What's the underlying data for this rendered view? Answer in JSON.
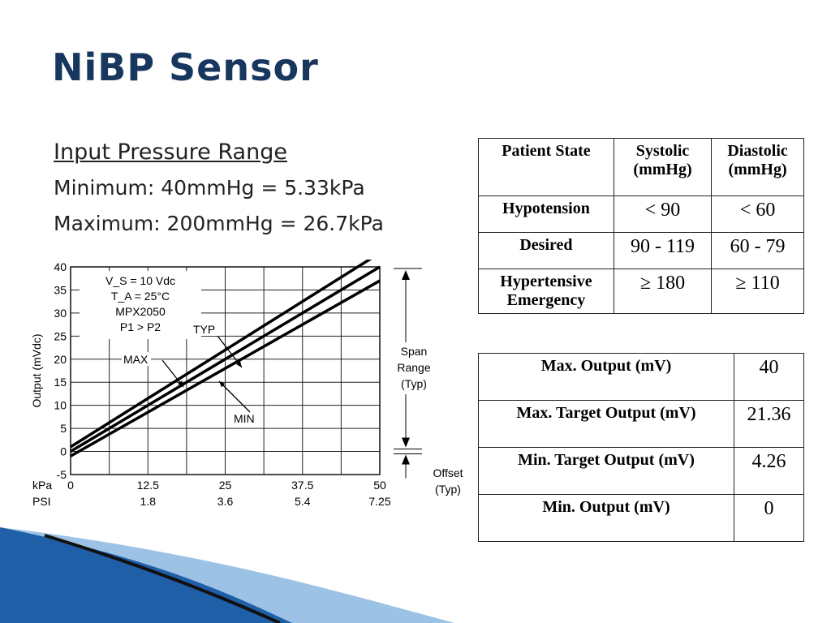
{
  "title": "NiBP Sensor",
  "bullets": {
    "heading": "Input Pressure Range",
    "minimum": "Minimum: 40mmHg = 5.33kPa",
    "maximum": "Maximum: 200mmHg = 26.7kPa"
  },
  "patient_table": {
    "headers": [
      [
        "Patient State"
      ],
      [
        "Systolic",
        "(mmHg)"
      ],
      [
        "Diastolic",
        "(mmHg)"
      ]
    ],
    "rows": [
      {
        "state": [
          "Hypotension"
        ],
        "systolic": "< 90",
        "diastolic": "< 60"
      },
      {
        "state": [
          "Desired"
        ],
        "systolic": "90 - 119",
        "diastolic": "60 - 79"
      },
      {
        "state": [
          "Hypertensive",
          "Emergency"
        ],
        "systolic": "≥ 180",
        "diastolic": "≥ 110"
      }
    ]
  },
  "output_table": {
    "rows": [
      {
        "label": "Max. Output (mV)",
        "value": "40"
      },
      {
        "label": "Max. Target Output (mV)",
        "value": "21.36"
      },
      {
        "label": "Min. Target Output (mV)",
        "value": "4.26"
      },
      {
        "label": "Min. Output (mV)",
        "value": "0"
      }
    ]
  },
  "chart_data": {
    "type": "line",
    "ylabel": "Output (mVdc)",
    "y_ticks": [
      "40",
      "35",
      "30",
      "25",
      "20",
      "15",
      "10",
      "5",
      "0",
      "-5"
    ],
    "ylim": [
      -5,
      40
    ],
    "x_unit_labels": [
      "kPa",
      "PSI"
    ],
    "x_ticks_kpa": [
      "0",
      "12.5",
      "25",
      "37.5",
      "50"
    ],
    "x_ticks_psi": [
      "1.8",
      "3.6",
      "5.4",
      "7.25"
    ],
    "xlim_kpa": [
      0,
      50
    ],
    "grid": true,
    "conditions": [
      "V_S = 10 Vdc",
      "T_A = 25°C",
      "MPX2050",
      "P1 > P2"
    ],
    "series": [
      {
        "name": "MAX",
        "x": [
          0,
          50
        ],
        "y": [
          1,
          43
        ]
      },
      {
        "name": "TYP",
        "x": [
          0,
          50
        ],
        "y": [
          0,
          40
        ]
      },
      {
        "name": "MIN",
        "x": [
          0,
          50
        ],
        "y": [
          -1,
          37
        ]
      }
    ],
    "annotations": {
      "span": [
        "Span",
        "Range",
        "(Typ)"
      ],
      "offset": [
        "Offset",
        "(Typ)"
      ]
    }
  },
  "colors": {
    "title": "#17375e",
    "swoosh_dark": "#1f5fa8",
    "swoosh_light": "#9cc3e6"
  }
}
